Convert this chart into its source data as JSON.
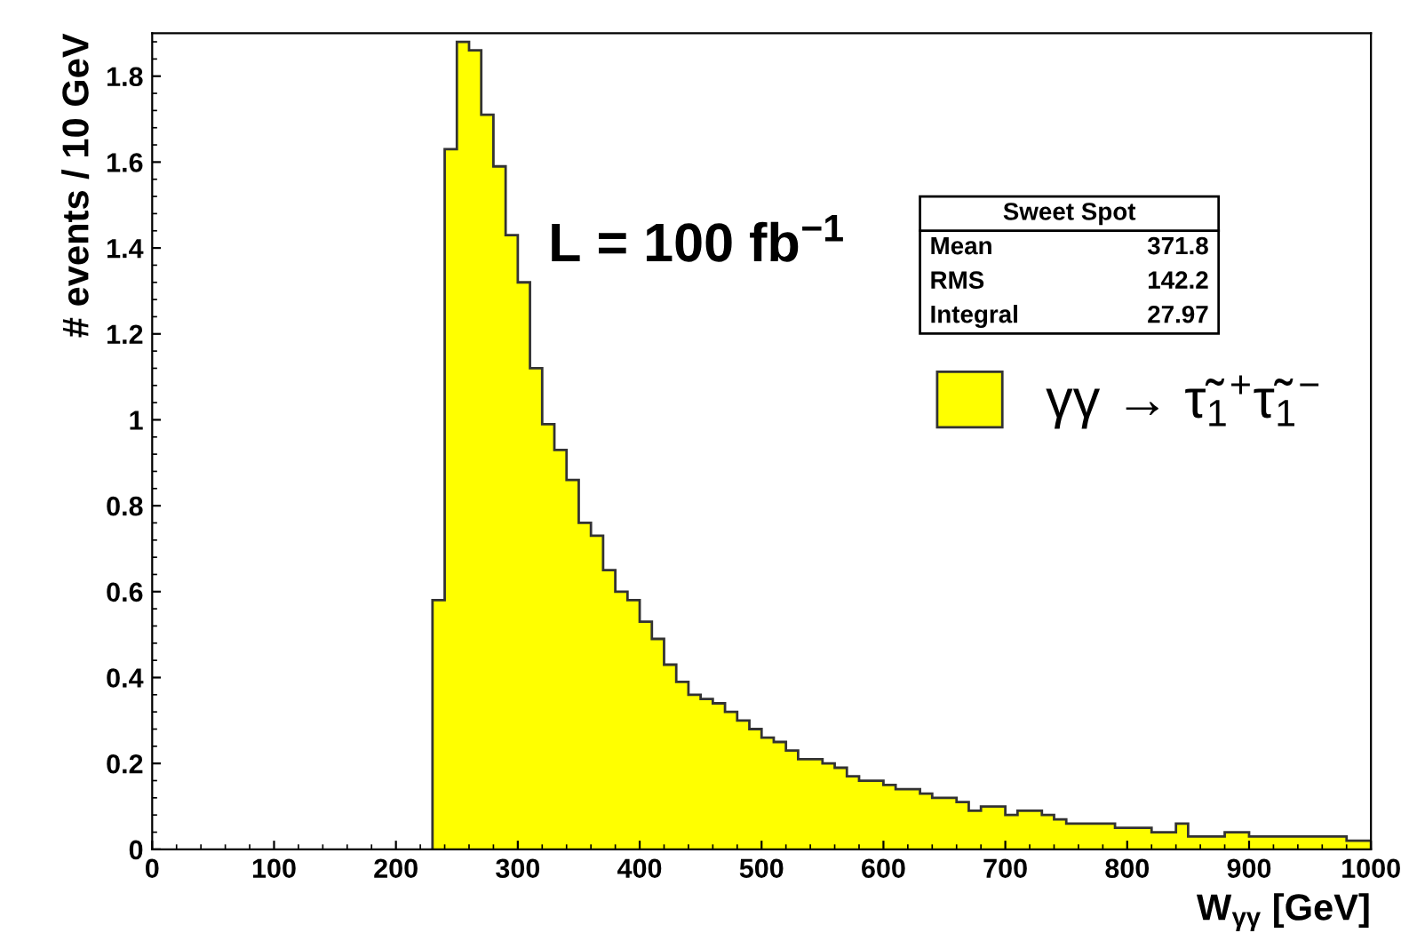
{
  "chart_data": {
    "type": "histogram",
    "xlabel": "W$_{γγ}$ [GeV]",
    "ylabel": "# events / 10 GeV",
    "bins": [
      230,
      240,
      250,
      260,
      270,
      280,
      290,
      300,
      310,
      320,
      330,
      340,
      350,
      360,
      370,
      380,
      390,
      400,
      410,
      420,
      430,
      440,
      450,
      460,
      470,
      480,
      490,
      500,
      510,
      520,
      530,
      540,
      550,
      560,
      570,
      580,
      590,
      600,
      610,
      620,
      630,
      640,
      650,
      660,
      670,
      680,
      690,
      700,
      710,
      720,
      730,
      740,
      750,
      760,
      770,
      780,
      790,
      800,
      810,
      820,
      830,
      840,
      850,
      860,
      870,
      880,
      890,
      900,
      910,
      920,
      930,
      940,
      950,
      960,
      970,
      980,
      990,
      1000
    ],
    "series": [
      {
        "name": "γγ → τ̃$_{1}$$^{+}$τ̃$_{1}$$^{−}$",
        "color": "#ffff00",
        "values": [
          0.58,
          1.63,
          1.88,
          1.86,
          1.71,
          1.59,
          1.43,
          1.32,
          1.12,
          0.99,
          0.93,
          0.86,
          0.76,
          0.73,
          0.65,
          0.6,
          0.58,
          0.53,
          0.49,
          0.43,
          0.39,
          0.36,
          0.35,
          0.34,
          0.32,
          0.3,
          0.28,
          0.26,
          0.25,
          0.23,
          0.21,
          0.21,
          0.2,
          0.19,
          0.17,
          0.16,
          0.16,
          0.15,
          0.14,
          0.14,
          0.13,
          0.12,
          0.12,
          0.11,
          0.09,
          0.1,
          0.1,
          0.08,
          0.09,
          0.09,
          0.08,
          0.07,
          0.06,
          0.06,
          0.06,
          0.06,
          0.05,
          0.05,
          0.05,
          0.04,
          0.04,
          0.06,
          0.03,
          0.03,
          0.03,
          0.04,
          0.04,
          0.03,
          0.03,
          0.03,
          0.03,
          0.03,
          0.03,
          0.03,
          0.03,
          0.02,
          0.02
        ]
      }
    ],
    "xlim": [
      0,
      1000
    ],
    "ylim": [
      0,
      1.9
    ],
    "xticks": [
      0,
      100,
      200,
      300,
      400,
      500,
      600,
      700,
      800,
      900,
      1000
    ],
    "yticks": [
      0,
      0.2,
      0.4,
      0.6,
      0.8,
      1,
      1.2,
      1.4,
      1.6,
      1.8
    ],
    "legend": "right",
    "grid": false,
    "annotations": [
      "L = 100 fb$^{−1}$",
      "Sweet Spot",
      "Mean",
      "371.8",
      "RMS",
      "142.2",
      "Integral",
      "27.97"
    ]
  }
}
